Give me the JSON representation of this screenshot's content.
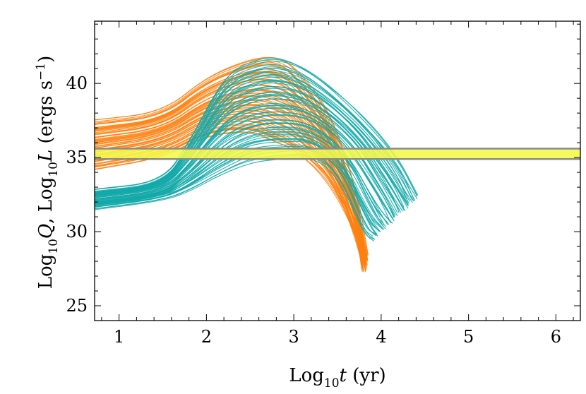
{
  "chart_data": {
    "type": "line",
    "xlabel": {
      "pre": "Log",
      "sub": "10",
      "var": "t",
      "post": " (yr)"
    },
    "ylabel": {
      "a": "Log",
      "a_sub": "10",
      "a_var": "Q",
      "sep": ", Log",
      "b_sub": "10",
      "b_var": "L",
      "unit": " (ergs s",
      "unit_sup": "−1",
      "unit_end": ")"
    },
    "xlim": [
      0.72,
      6.28
    ],
    "ylim": [
      24,
      44.2
    ],
    "xticks": [
      1,
      2,
      3,
      4,
      5,
      6
    ],
    "yticks": [
      25,
      30,
      35,
      40
    ],
    "grid": false,
    "band": {
      "y_low": 34.9,
      "y_high": 35.6,
      "fill": "#f4f84a",
      "edge": "#8a8a8a"
    },
    "series": [
      {
        "color": "#ff7f0e",
        "n_tracks": 60,
        "track_upper": [
          [
            0.72,
            37.5
          ],
          [
            1.5,
            38.0
          ],
          [
            2.0,
            40.4
          ],
          [
            2.5,
            41.6
          ],
          [
            2.8,
            41.8
          ],
          [
            3.0,
            41.0
          ],
          [
            3.4,
            38.2
          ],
          [
            3.7,
            33.0
          ],
          [
            3.83,
            28.5
          ]
        ],
        "track_lower": [
          [
            0.72,
            34.2
          ],
          [
            1.5,
            35.0
          ],
          [
            2.0,
            36.5
          ],
          [
            2.5,
            36.8
          ],
          [
            2.8,
            36.0
          ],
          [
            3.0,
            35.6
          ],
          [
            3.4,
            33.6
          ],
          [
            3.7,
            30.0
          ],
          [
            3.8,
            27.3
          ]
        ]
      },
      {
        "color": "#14a9a9",
        "n_tracks": 60,
        "track_upper": [
          [
            0.72,
            32.8
          ],
          [
            1.5,
            33.3
          ],
          [
            1.8,
            36.0
          ],
          [
            2.2,
            40.5
          ],
          [
            2.5,
            41.4
          ],
          [
            2.8,
            41.8
          ],
          [
            3.2,
            40.8
          ],
          [
            3.8,
            37.8
          ],
          [
            4.2,
            35.0
          ],
          [
            4.42,
            32.4
          ]
        ],
        "track_lower": [
          [
            0.72,
            31.6
          ],
          [
            1.5,
            32.2
          ],
          [
            1.8,
            32.8
          ],
          [
            2.2,
            34.0
          ],
          [
            2.5,
            34.8
          ],
          [
            2.8,
            35.0
          ],
          [
            3.2,
            35.2
          ],
          [
            3.5,
            34.0
          ],
          [
            3.8,
            29.8
          ],
          [
            3.9,
            29.5
          ]
        ]
      }
    ]
  }
}
